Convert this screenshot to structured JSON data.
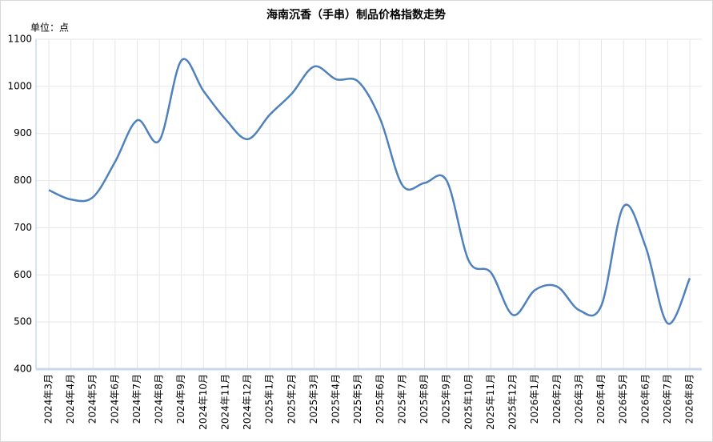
{
  "chart_data": {
    "type": "line",
    "title": "海南沉香（手串）制品价格指数走势",
    "y_unit_label": "单位：点",
    "categories": [
      "2024年3月",
      "2024年4月",
      "2024年5月",
      "2024年6月",
      "2024年7月",
      "2024年8月",
      "2024年9月",
      "2024年10月",
      "2024年11月",
      "2024年12月",
      "2025年1月",
      "2025年2月",
      "2025年3月",
      "2025年4月",
      "2025年5月",
      "2025年6月",
      "2025年7月",
      "2025年8月",
      "2025年9月",
      "2025年10月",
      "2025年11月",
      "2025年12月",
      "2026年1月",
      "2026年2月",
      "2026年3月",
      "2026年4月",
      "2026年5月",
      "2026年6月",
      "2026年7月",
      "2026年8月"
    ],
    "values": [
      780,
      760,
      765,
      840,
      928,
      885,
      1055,
      990,
      930,
      888,
      940,
      985,
      1042,
      1015,
      1010,
      930,
      790,
      795,
      800,
      630,
      605,
      515,
      568,
      575,
      525,
      535,
      745,
      660,
      497,
      593
    ],
    "color": "#4f81bd",
    "smooth": true,
    "ylim": [
      400,
      1100
    ],
    "yticks": [
      400,
      500,
      600,
      700,
      800,
      900,
      1000,
      1100
    ],
    "grid": true
  }
}
